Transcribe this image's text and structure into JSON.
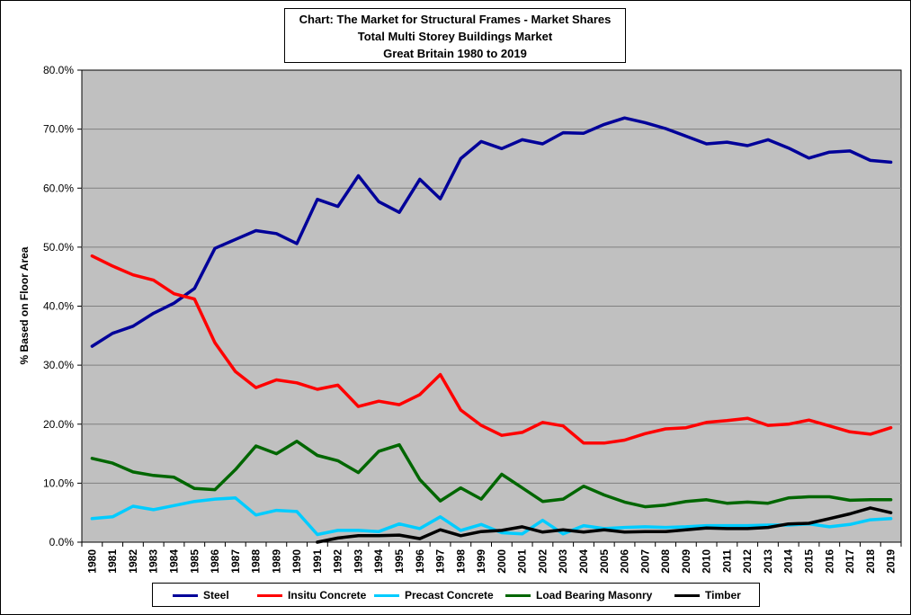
{
  "chart_data": {
    "type": "line",
    "title": "Chart: The Market for Structural Frames - Market Shares",
    "subtitle_lines": [
      "Total Multi Storey Buildings Market",
      "Great Britain 1980 to 2019"
    ],
    "ylabel": "% Based on Floor Area",
    "xlabel": "",
    "ylim": [
      0,
      80
    ],
    "y_ticks": [
      "0.0%",
      "10.0%",
      "20.0%",
      "30.0%",
      "40.0%",
      "50.0%",
      "60.0%",
      "70.0%",
      "80.0%"
    ],
    "grid": true,
    "legend_position": "bottom",
    "x": [
      "1980",
      "1981",
      "1982",
      "1983",
      "1984",
      "1985",
      "1986",
      "1987",
      "1988",
      "1989",
      "1990",
      "1991",
      "1992",
      "1993",
      "1994",
      "1995",
      "1996",
      "1997",
      "1998",
      "1999",
      "2000",
      "2001",
      "2002",
      "2003",
      "2004",
      "2005",
      "2006",
      "2007",
      "2008",
      "2009",
      "2010",
      "2011",
      "2012",
      "2013",
      "2014",
      "2015",
      "2016",
      "2017",
      "2018",
      "2019"
    ],
    "series": [
      {
        "name": "Steel",
        "color": "#000099",
        "values": [
          33.2,
          35.4,
          36.6,
          38.8,
          40.5,
          43.0,
          49.8,
          51.3,
          52.8,
          52.3,
          50.6,
          58.1,
          56.9,
          62.1,
          57.7,
          55.9,
          61.5,
          58.2,
          65.0,
          67.9,
          66.7,
          68.2,
          67.5,
          69.4,
          69.3,
          70.8,
          71.9,
          71.1,
          70.1,
          68.8,
          67.5,
          67.8,
          67.2,
          68.2,
          66.8,
          65.1,
          66.1,
          66.3,
          64.7,
          64.4
        ]
      },
      {
        "name": "Insitu Concrete",
        "color": "#ff0000",
        "values": [
          48.5,
          46.8,
          45.3,
          44.4,
          42.1,
          41.2,
          33.8,
          28.9,
          26.2,
          27.5,
          27.0,
          25.9,
          26.6,
          23.0,
          23.9,
          23.3,
          25.0,
          28.4,
          22.4,
          19.8,
          18.1,
          18.6,
          20.3,
          19.7,
          16.8,
          16.8,
          17.3,
          18.4,
          19.2,
          19.4,
          20.3,
          20.6,
          21.0,
          19.8,
          20.0,
          20.7,
          19.7,
          18.7,
          18.3,
          19.4
        ]
      },
      {
        "name": "Precast Concrete",
        "color": "#00ccff",
        "values": [
          4.0,
          4.3,
          6.1,
          5.5,
          6.2,
          6.9,
          7.3,
          7.5,
          4.6,
          5.4,
          5.2,
          1.3,
          2.0,
          2.0,
          1.8,
          3.1,
          2.3,
          4.3,
          2.0,
          3.0,
          1.6,
          1.4,
          3.7,
          1.4,
          2.8,
          2.3,
          2.5,
          2.6,
          2.5,
          2.6,
          2.8,
          2.8,
          2.8,
          2.9,
          2.9,
          3.1,
          2.6,
          3.0,
          3.8,
          4.0
        ]
      },
      {
        "name": "Load Bearing Masonry",
        "color": "#006600",
        "values": [
          14.2,
          13.4,
          11.9,
          11.3,
          11.0,
          9.1,
          8.9,
          12.3,
          16.3,
          15.0,
          17.1,
          14.7,
          13.8,
          11.8,
          15.4,
          16.5,
          10.6,
          7.0,
          9.2,
          7.3,
          11.5,
          9.2,
          6.9,
          7.3,
          9.5,
          8.0,
          6.8,
          6.0,
          6.3,
          6.9,
          7.2,
          6.6,
          6.8,
          6.6,
          7.5,
          7.7,
          7.7,
          7.1,
          7.2,
          7.2
        ]
      },
      {
        "name": "Timber",
        "color": "#000000",
        "values": [
          null,
          null,
          null,
          null,
          null,
          null,
          null,
          null,
          null,
          null,
          null,
          0.0,
          0.7,
          1.1,
          1.1,
          1.2,
          0.6,
          2.1,
          1.1,
          1.8,
          2.0,
          2.6,
          1.7,
          2.1,
          1.7,
          2.1,
          1.7,
          1.8,
          1.8,
          2.1,
          2.4,
          2.3,
          2.3,
          2.5,
          3.1,
          3.2,
          4.0,
          4.8,
          5.8,
          5.0
        ]
      }
    ]
  }
}
